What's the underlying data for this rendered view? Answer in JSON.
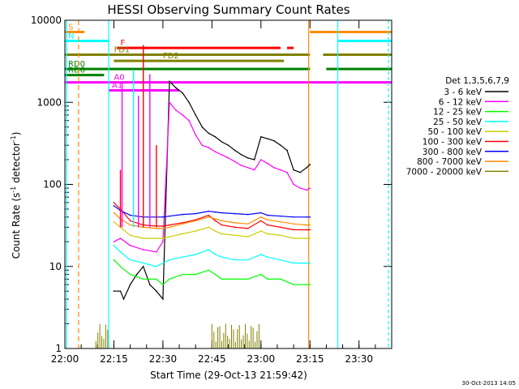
{
  "chart_data": {
    "type": "line",
    "title": "HESSI Observing Summary Count Rates",
    "xlabel": "Start Time (29-Oct-13 21:59:42)",
    "ylabel_main": "Count Rate (s",
    "ylabel_sup1": "-1",
    "ylabel_mid": " detector",
    "ylabel_sup2": "-1",
    "ylabel_end": ")",
    "stamp": "30-Oct-2013 14:05",
    "yscale": "log",
    "xlim": [
      0,
      100
    ],
    "ylim": [
      1,
      10000
    ],
    "xticks": [
      {
        "t": 0,
        "label": "22:00"
      },
      {
        "t": 15,
        "label": "22:15"
      },
      {
        "t": 30,
        "label": "22:30"
      },
      {
        "t": 45,
        "label": "22:45"
      },
      {
        "t": 60,
        "label": "23:00"
      },
      {
        "t": 75,
        "label": "23:15"
      },
      {
        "t": 90,
        "label": "23:30"
      }
    ],
    "yticks": [
      {
        "v": 1,
        "label": "1"
      },
      {
        "v": 10,
        "label": "10"
      },
      {
        "v": 100,
        "label": "100"
      },
      {
        "v": 1000,
        "label": "1000"
      },
      {
        "v": 10000,
        "label": "10000"
      }
    ],
    "legend_title": "Det 1,3,5,6,7,9",
    "legend_position": "right",
    "series": [
      {
        "name": "3 - 6 keV",
        "color": "#000000",
        "x": [
          15,
          17,
          18,
          20,
          22,
          24,
          26,
          28,
          30,
          32,
          34,
          36,
          38,
          40,
          42,
          44,
          46,
          48,
          50,
          52,
          54,
          56,
          58,
          60,
          62,
          64,
          66,
          68,
          70,
          72,
          74,
          75
        ],
        "y": [
          5,
          5,
          4,
          6,
          8,
          10,
          6,
          5,
          4,
          1800,
          1500,
          1300,
          1000,
          700,
          500,
          420,
          380,
          330,
          300,
          260,
          230,
          210,
          200,
          380,
          360,
          340,
          300,
          260,
          150,
          140,
          160,
          175
        ]
      },
      {
        "name": "6 - 12 keV",
        "color": "#ff00ff",
        "x": [
          15,
          17,
          20,
          24,
          28,
          30,
          32,
          34,
          36,
          38,
          40,
          42,
          44,
          46,
          48,
          50,
          52,
          54,
          56,
          58,
          60,
          62,
          64,
          66,
          68,
          70,
          72,
          74,
          75
        ],
        "y": [
          20,
          22,
          18,
          16,
          15,
          20,
          1000,
          800,
          700,
          600,
          400,
          300,
          280,
          250,
          230,
          210,
          190,
          170,
          160,
          150,
          200,
          180,
          160,
          150,
          140,
          100,
          90,
          85,
          90
        ]
      },
      {
        "name": "12 - 25 keV",
        "color": "#00ff00",
        "x": [
          15,
          17,
          20,
          24,
          28,
          30,
          32,
          36,
          40,
          44,
          46,
          48,
          52,
          56,
          60,
          62,
          66,
          70,
          74,
          75
        ],
        "y": [
          12,
          10,
          8,
          7,
          7,
          6,
          7,
          8,
          8,
          9,
          8,
          7,
          7,
          7,
          8,
          7,
          7,
          6,
          6,
          6
        ]
      },
      {
        "name": "25 - 50 keV",
        "color": "#00ffff",
        "x": [
          15,
          17,
          20,
          24,
          28,
          30,
          32,
          36,
          40,
          44,
          46,
          48,
          52,
          56,
          60,
          62,
          66,
          70,
          74,
          75
        ],
        "y": [
          18,
          15,
          12,
          11,
          10,
          11,
          12,
          13,
          14,
          16,
          14,
          13,
          12,
          12,
          14,
          13,
          12,
          11,
          11,
          11
        ]
      },
      {
        "name": "50 - 100 keV",
        "color": "#cccc00",
        "x": [
          15,
          17,
          20,
          24,
          28,
          30,
          32,
          36,
          40,
          44,
          46,
          48,
          52,
          56,
          60,
          62,
          66,
          70,
          74,
          75
        ],
        "y": [
          35,
          30,
          24,
          22,
          22,
          22,
          23,
          25,
          27,
          30,
          27,
          25,
          24,
          23,
          27,
          25,
          24,
          22,
          22,
          22
        ]
      },
      {
        "name": "100 - 300 keV",
        "color": "#ff0000",
        "x": [
          15,
          17,
          20,
          24,
          28,
          30,
          32,
          36,
          40,
          44,
          46,
          48,
          52,
          56,
          60,
          62,
          66,
          70,
          74,
          75
        ],
        "y": [
          60,
          50,
          36,
          32,
          31,
          31,
          32,
          34,
          37,
          42,
          36,
          32,
          30,
          29,
          36,
          32,
          30,
          28,
          28,
          28
        ]
      },
      {
        "name": "300 - 800 keV",
        "color": "#0000ff",
        "x": [
          15,
          17,
          20,
          24,
          28,
          30,
          32,
          36,
          40,
          44,
          46,
          48,
          52,
          56,
          60,
          62,
          66,
          70,
          74,
          75
        ],
        "y": [
          55,
          48,
          42,
          40,
          40,
          40,
          41,
          43,
          44,
          47,
          46,
          45,
          44,
          43,
          45,
          42,
          41,
          40,
          40,
          40
        ]
      },
      {
        "name": "800 - 7000 keV",
        "color": "#ff8c00",
        "x": [
          15,
          17,
          20,
          24,
          28,
          30,
          32,
          36,
          40,
          44,
          46,
          48,
          52,
          56,
          60,
          62,
          66,
          70,
          74,
          75
        ],
        "y": [
          45,
          38,
          32,
          30,
          29,
          29,
          30,
          33,
          36,
          40,
          38,
          36,
          34,
          33,
          40,
          37,
          35,
          33,
          32,
          32
        ]
      },
      {
        "name": "7000 - 20000 keV",
        "color": "#808000",
        "x": [],
        "y": []
      }
    ],
    "spikes_magenta": [
      {
        "t": 17.5,
        "y": 1700
      },
      {
        "t": 22.5,
        "y": 1200
      },
      {
        "t": 26,
        "y": 2200
      }
    ],
    "spikes_red": [
      {
        "t": 24,
        "y": 5000
      },
      {
        "t": 17,
        "y": 150
      },
      {
        "t": 28,
        "y": 300
      }
    ],
    "spikes_cyan": [
      {
        "t": 21,
        "y": 2500
      }
    ],
    "flag_lines": [
      {
        "t": 0.5,
        "color": "#00ffff"
      },
      {
        "t": 4.2,
        "color": "#ff8c00"
      },
      {
        "t": 13.4,
        "color": "#00ffff"
      },
      {
        "t": 74.6,
        "color": "#ff8c00"
      },
      {
        "t": 83.5,
        "color": "#00ffff"
      },
      {
        "t": 99,
        "color": "#00ffff"
      }
    ]
  },
  "flags": [
    {
      "label": "S",
      "color": "#ff8c00",
      "y": 7200,
      "segs": [
        [
          0,
          6
        ],
        [
          75,
          100
        ]
      ]
    },
    {
      "label": "N",
      "color": "#00ffff",
      "y": 5600,
      "segs": [
        [
          0,
          13.4
        ],
        [
          83.5,
          100
        ]
      ]
    },
    {
      "label": "F",
      "color": "#ff0000",
      "y": 4600,
      "segs": [
        [
          16,
          66
        ],
        [
          68,
          70
        ]
      ]
    },
    {
      "label": "FD1",
      "color": "#808000",
      "y": 3800,
      "segs": [
        [
          0,
          75
        ],
        [
          79,
          100
        ]
      ]
    },
    {
      "label": "FD2",
      "color": "#808000",
      "y": 3200,
      "segs": [
        [
          15,
          67
        ]
      ]
    },
    {
      "label": "RD0",
      "color": "#008000",
      "y": 2550,
      "segs": [
        [
          0,
          75
        ],
        [
          80,
          100
        ]
      ]
    },
    {
      "label": "RD6",
      "color": "#008000",
      "y": 2150,
      "segs": [
        [
          0,
          12
        ]
      ]
    },
    {
      "label": "A0",
      "color": "#ff00ff",
      "y": 1750,
      "segs": [
        [
          0,
          100
        ]
      ]
    },
    {
      "label": "A1",
      "color": "#ff00ff",
      "y": 1400,
      "segs": [
        [
          13.4,
          35
        ]
      ]
    }
  ]
}
